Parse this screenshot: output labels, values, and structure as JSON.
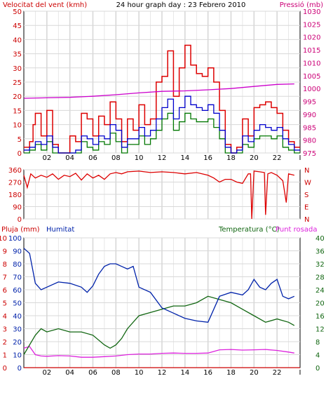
{
  "header": {
    "left_label": "Velocitat del vent (kmh)",
    "center_title": "24 hour graph day : 23 Febrero 2010",
    "right_label": "Pressió (mb)"
  },
  "colors": {
    "wind_avg": "#0000cc",
    "wind_gust": "#dd0000",
    "wind_run": "#007700",
    "pressure": "#cc00cc",
    "direction": "#dd0000",
    "humidity": "#0022aa",
    "temperature": "#116611",
    "dewpoint": "#dd22dd",
    "rain": "#cc0000",
    "grid": "#d8d8d8",
    "axis_left": "#cc0000",
    "axis_right": "#cc0077"
  },
  "panel2": {
    "right_letters": [
      "N",
      "W",
      "S",
      "E",
      "N"
    ]
  },
  "panel3": {
    "left_label": "Pluja (mm)",
    "mid_label": "Humitat",
    "right_label_a": "Temperatura (°C)",
    "right_label_b": "Punt rosada"
  },
  "chart_data": [
    {
      "type": "line",
      "title": "24 hour graph day : 23 Febrero 2010",
      "x_ticks": [
        "02",
        "04",
        "06",
        "08",
        "10",
        "12",
        "14",
        "16",
        "18",
        "20",
        "22",
        "I"
      ],
      "xlim": [
        0,
        24
      ],
      "ylabel_left": "Velocitat del vent (kmh)",
      "ylabel_right": "Pressió (mb)",
      "ylim_left": [
        0,
        50
      ],
      "yticks_left": [
        "0",
        "5",
        "10",
        "15",
        "20",
        "25",
        "30",
        "35",
        "40",
        "45",
        "50"
      ],
      "ylim_right": [
        975,
        1030
      ],
      "yticks_right": [
        "975",
        "980",
        "985",
        "990",
        "995",
        "1000",
        "1005",
        "1010",
        "1015",
        "1020",
        "1025",
        "1030"
      ],
      "series": [
        {
          "key": "gust",
          "axis": "left",
          "x": [
            0,
            0.5,
            0.8,
            1.0,
            1.5,
            2.0,
            2.5,
            3.0,
            3.5,
            4.0,
            4.5,
            5.0,
            5.5,
            6.0,
            6.5,
            7.0,
            7.5,
            8.0,
            8.5,
            9.0,
            9.5,
            10.0,
            10.5,
            11.0,
            11.5,
            12.0,
            12.5,
            13.0,
            13.5,
            14.0,
            14.5,
            15.0,
            15.5,
            16.0,
            16.5,
            17.0,
            17.5,
            18.0,
            18.5,
            19.0,
            19.5,
            20.0,
            20.5,
            21.0,
            21.5,
            22.0,
            22.5,
            23.0,
            23.5
          ],
          "values": [
            2,
            4,
            10,
            14,
            6,
            15,
            3,
            0,
            0,
            6,
            4,
            14,
            12,
            6,
            13,
            10,
            18,
            12,
            4,
            12,
            8,
            17,
            10,
            12,
            25,
            27,
            36,
            20,
            30,
            38,
            31,
            28,
            27,
            30,
            25,
            15,
            3,
            0,
            2,
            12,
            6,
            16,
            17,
            18,
            16,
            14,
            8,
            4,
            2
          ]
        },
        {
          "key": "average",
          "axis": "left",
          "x": [
            0,
            0.5,
            1.0,
            1.5,
            2.0,
            2.5,
            3.0,
            3.5,
            4.0,
            4.5,
            5.0,
            5.5,
            6.0,
            6.5,
            7.0,
            7.5,
            8.0,
            8.5,
            9.0,
            9.5,
            10.0,
            10.5,
            11.0,
            11.5,
            12.0,
            12.5,
            13.0,
            13.5,
            14.0,
            14.5,
            15.0,
            15.5,
            16.0,
            16.5,
            17.0,
            17.5,
            18.0,
            18.5,
            19.0,
            19.5,
            20.0,
            20.5,
            21.0,
            21.5,
            22.0,
            22.5,
            23.0,
            23.5
          ],
          "values": [
            1,
            2,
            4,
            3,
            6,
            2,
            0,
            0,
            0,
            1,
            6,
            5,
            3,
            6,
            5,
            10,
            8,
            2,
            5,
            5,
            9,
            6,
            8,
            12,
            16,
            19,
            12,
            16,
            20,
            17,
            16,
            15,
            17,
            14,
            8,
            2,
            0,
            1,
            6,
            4,
            8,
            10,
            9,
            8,
            9,
            5,
            3,
            1
          ]
        },
        {
          "key": "run",
          "axis": "left",
          "x": [
            0,
            0.5,
            1.0,
            1.5,
            2.0,
            2.5,
            3.0,
            3.5,
            4.0,
            4.5,
            5.0,
            5.5,
            6.0,
            6.5,
            7.0,
            7.5,
            8.0,
            8.5,
            9.0,
            9.5,
            10.0,
            10.5,
            11.0,
            11.5,
            12.0,
            12.5,
            13.0,
            13.5,
            14.0,
            14.5,
            15.0,
            15.5,
            16.0,
            16.5,
            17.0,
            17.5,
            18.0,
            18.5,
            19.0,
            19.5,
            20.0,
            20.5,
            21.0,
            21.5,
            22.0,
            22.5,
            23.0,
            23.5
          ],
          "values": [
            0,
            1,
            3,
            1,
            4,
            0,
            0,
            0,
            0,
            0,
            4,
            2,
            1,
            4,
            3,
            7,
            4,
            0,
            3,
            3,
            6,
            3,
            5,
            8,
            12,
            14,
            8,
            11,
            14,
            12,
            11,
            11,
            12,
            9,
            5,
            0,
            0,
            0,
            3,
            2,
            5,
            6,
            6,
            5,
            6,
            2,
            1,
            0
          ]
        },
        {
          "key": "pressure",
          "axis": "right",
          "x": [
            0,
            2,
            4,
            6,
            8,
            10,
            12,
            14,
            16,
            18,
            20,
            22,
            23.5
          ],
          "values": [
            996.2,
            996.4,
            996.6,
            997.0,
            997.6,
            998.3,
            998.9,
            999.1,
            999.5,
            1000.0,
            1000.8,
            1001.6,
            1001.8
          ]
        }
      ]
    },
    {
      "type": "line",
      "x_ticks": [
        "02",
        "04",
        "06",
        "08",
        "10",
        "12",
        "14",
        "16",
        "18",
        "20",
        "22",
        "I"
      ],
      "xlim": [
        0,
        24
      ],
      "ylim": [
        0,
        360
      ],
      "yticks": [
        "0",
        "90",
        "180",
        "270",
        "360"
      ],
      "series": [
        {
          "key": "direction",
          "x": [
            0,
            0.3,
            0.6,
            1.0,
            1.5,
            2.0,
            2.5,
            3.0,
            3.5,
            4.0,
            4.5,
            5.0,
            5.5,
            6.0,
            6.5,
            7.0,
            7.5,
            8.0,
            8.5,
            9.0,
            10.0,
            11.0,
            12.0,
            13.0,
            14.0,
            15.0,
            16.0,
            16.5,
            17.0,
            17.5,
            18.0,
            18.5,
            19.0,
            19.5,
            19.7,
            19.8,
            20.0,
            20.5,
            20.9,
            21.0,
            21.2,
            21.5,
            22.0,
            22.5,
            22.8,
            23.0,
            23.5
          ],
          "values": [
            320,
            230,
            330,
            300,
            320,
            305,
            330,
            290,
            320,
            310,
            335,
            285,
            330,
            300,
            320,
            290,
            330,
            340,
            330,
            345,
            350,
            340,
            345,
            340,
            330,
            340,
            320,
            300,
            270,
            290,
            290,
            270,
            260,
            330,
            330,
            0,
            350,
            345,
            340,
            30,
            330,
            340,
            320,
            280,
            120,
            330,
            320
          ]
        }
      ]
    },
    {
      "type": "line",
      "x_ticks": [
        "02",
        "04",
        "06",
        "08",
        "10",
        "12",
        "14",
        "16",
        "18",
        "20",
        "22",
        "I"
      ],
      "xlim": [
        0,
        24
      ],
      "ylabel_left": "Pluja (mm)",
      "ylabel_mid": "Humitat",
      "ylabel_right": "Temperatura (°C)",
      "ylabel_right_b": "Punt rosada",
      "ylim_rain": [
        0,
        10
      ],
      "yticks_rain": [
        "0",
        "1",
        "2",
        "3",
        "4",
        "5",
        "6",
        "7",
        "8",
        "9",
        "10"
      ],
      "ylim_humidity": [
        0,
        100
      ],
      "yticks_humidity": [
        "0",
        "10",
        "20",
        "30",
        "40",
        "50",
        "60",
        "70",
        "80",
        "90",
        "100"
      ],
      "ylim_temp": [
        0,
        40
      ],
      "yticks_temp": [
        "0",
        "4",
        "8",
        "12",
        "16",
        "20",
        "24",
        "28",
        "32",
        "36",
        "40"
      ],
      "series": [
        {
          "key": "humidity",
          "axis": "humidity",
          "x": [
            0,
            0.5,
            1.0,
            1.5,
            2.0,
            3.0,
            4.0,
            5.0,
            5.5,
            6.0,
            6.5,
            7.0,
            7.5,
            8.0,
            8.5,
            9.0,
            9.5,
            10.0,
            11.0,
            12.0,
            13.0,
            14.0,
            15.0,
            16.0,
            17.0,
            18.0,
            19.0,
            19.5,
            20.0,
            20.5,
            21.0,
            21.5,
            22.0,
            22.5,
            23.0,
            23.5
          ],
          "values": [
            92,
            88,
            65,
            60,
            62,
            66,
            65,
            62,
            58,
            63,
            72,
            78,
            80,
            80,
            78,
            76,
            78,
            62,
            58,
            46,
            42,
            38,
            36,
            35,
            55,
            58,
            56,
            60,
            68,
            62,
            60,
            65,
            68,
            55,
            53,
            55
          ]
        },
        {
          "key": "temperature",
          "axis": "temp",
          "x": [
            0,
            0.5,
            1.0,
            1.5,
            2.0,
            3.0,
            4.0,
            5.0,
            6.0,
            7.0,
            7.5,
            8.0,
            8.5,
            9.0,
            10.0,
            11.0,
            12.0,
            13.0,
            14.0,
            15.0,
            16.0,
            17.0,
            18.0,
            19.0,
            20.0,
            21.0,
            22.0,
            23.0,
            23.5
          ],
          "values": [
            4,
            7,
            10,
            12,
            11,
            12,
            11,
            11,
            10,
            7,
            6,
            7,
            9,
            12,
            16,
            17,
            18,
            19,
            19,
            20,
            22,
            21,
            20,
            18,
            16,
            14,
            15,
            14,
            13
          ]
        },
        {
          "key": "dewpoint",
          "axis": "temp",
          "x": [
            0,
            0.5,
            1.0,
            1.5,
            2.0,
            3.0,
            4.0,
            5.0,
            6.0,
            7.0,
            8.0,
            9.0,
            10.0,
            11.0,
            12.0,
            13.0,
            14.0,
            15.0,
            16.0,
            17.0,
            18.0,
            19.0,
            20.0,
            21.0,
            22.0,
            23.0,
            23.5
          ],
          "values": [
            6,
            6.5,
            4,
            3.6,
            3.5,
            3.7,
            3.6,
            3.2,
            3.2,
            3.4,
            3.6,
            4.0,
            4.2,
            4.2,
            4.4,
            4.5,
            4.4,
            4.4,
            4.5,
            5.5,
            5.6,
            5.4,
            5.5,
            5.6,
            5.3,
            4.8,
            4.5
          ]
        },
        {
          "key": "rain",
          "axis": "rain",
          "x": [
            0,
            24
          ],
          "values": [
            0,
            0
          ]
        }
      ]
    }
  ]
}
